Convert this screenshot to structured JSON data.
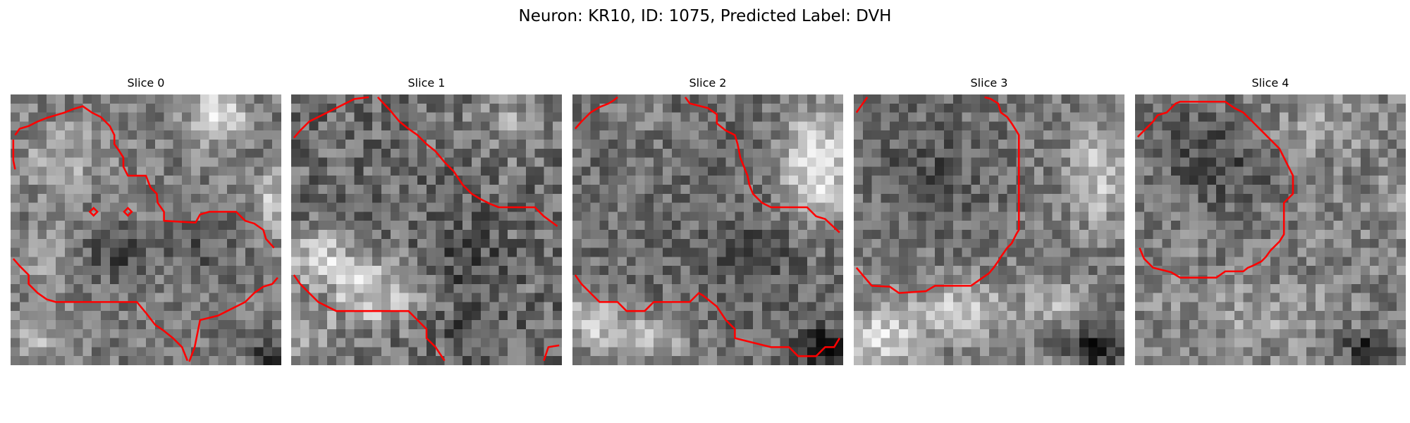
{
  "figure": {
    "title": "Neuron: KR10, ID: 1075, Predicted Label: DVH"
  },
  "panels": [
    {
      "title": "Slice 0"
    },
    {
      "title": "Slice 1"
    },
    {
      "title": "Slice 2"
    },
    {
      "title": "Slice 3"
    },
    {
      "title": "Slice 4"
    }
  ],
  "colors": {
    "contour": "#ff0000",
    "background": "#ffffff"
  },
  "image": {
    "colormap": "grayscale",
    "grid": "30x30 pixels per slice"
  }
}
